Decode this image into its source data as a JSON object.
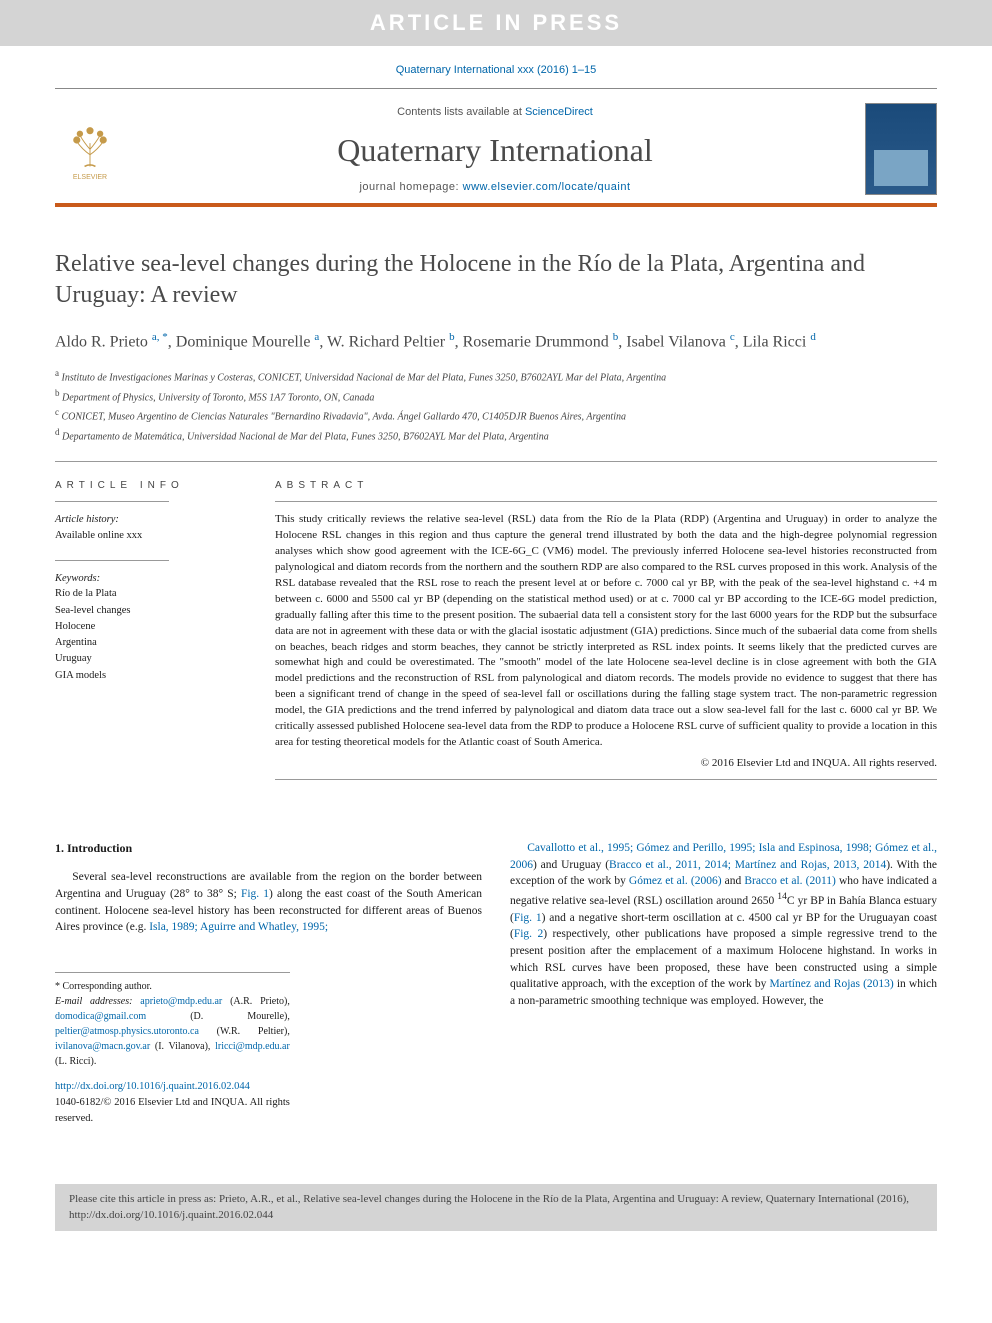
{
  "banner": {
    "text": "ARTICLE IN PRESS"
  },
  "journal_ref": "Quaternary International xxx (2016) 1–15",
  "masthead": {
    "contents_prefix": "Contents lists available at ",
    "contents_link": "ScienceDirect",
    "journal_title": "Quaternary International",
    "homepage_prefix": "journal homepage: ",
    "homepage_link": "www.elsevier.com/locate/quaint",
    "publisher": "ELSEVIER",
    "accent_color": "#c95a1a",
    "link_color": "#0066aa"
  },
  "article": {
    "title": "Relative sea-level changes during the Holocene in the Río de la Plata, Argentina and Uruguay: A review",
    "authors_html": "Aldo R. Prieto <sup>a, *</sup>, Dominique Mourelle <sup>a</sup>, W. Richard Peltier <sup>b</sup>, Rosemarie Drummond <sup>b</sup>, Isabel Vilanova <sup>c</sup>, Lila Ricci <sup>d</sup>",
    "affiliations": [
      {
        "sup": "a",
        "text": "Instituto de Investigaciones Marinas y Costeras, CONICET, Universidad Nacional de Mar del Plata, Funes 3250, B7602AYL Mar del Plata, Argentina"
      },
      {
        "sup": "b",
        "text": "Department of Physics, University of Toronto, M5S 1A7 Toronto, ON, Canada"
      },
      {
        "sup": "c",
        "text": "CONICET, Museo Argentino de Ciencias Naturales \"Bernardino Rivadavia\", Avda. Ángel Gallardo 470, C1405DJR Buenos Aires, Argentina"
      },
      {
        "sup": "d",
        "text": "Departamento de Matemática, Universidad Nacional de Mar del Plata, Funes 3250, B7602AYL Mar del Plata, Argentina"
      }
    ]
  },
  "info": {
    "header": "ARTICLE INFO",
    "history_label": "Article history:",
    "history_value": "Available online xxx",
    "keywords_label": "Keywords:",
    "keywords": [
      "Río de la Plata",
      "Sea-level changes",
      "Holocene",
      "Argentina",
      "Uruguay",
      "GIA models"
    ]
  },
  "abstract": {
    "header": "ABSTRACT",
    "text": "This study critically reviews the relative sea-level (RSL) data from the Río de la Plata (RDP) (Argentina and Uruguay) in order to analyze the Holocene RSL changes in this region and thus capture the general trend illustrated by both the data and the high-degree polynomial regression analyses which show good agreement with the ICE-6G_C (VM6) model. The previously inferred Holocene sea-level histories reconstructed from palynological and diatom records from the northern and the southern RDP are also compared to the RSL curves proposed in this work. Analysis of the RSL database revealed that the RSL rose to reach the present level at or before c. 7000 cal yr BP, with the peak of the sea-level highstand c. +4 m between c. 6000 and 5500 cal yr BP (depending on the statistical method used) or at c. 7000 cal yr BP according to the ICE-6G model prediction, gradually falling after this time to the present position. The subaerial data tell a consistent story for the last 6000 years for the RDP but the subsurface data are not in agreement with these data or with the glacial isostatic adjustment (GIA) predictions. Since much of the subaerial data come from shells on beaches, beach ridges and storm beaches, they cannot be strictly interpreted as RSL index points. It seems likely that the predicted curves are somewhat high and could be overestimated. The \"smooth\" model of the late Holocene sea-level decline is in close agreement with both the GIA model predictions and the reconstruction of RSL from palynological and diatom records. The models provide no evidence to suggest that there has been a significant trend of change in the speed of sea-level fall or oscillations during the falling stage system tract. The non-parametric regression model, the GIA predictions and the trend inferred by palynological and diatom data trace out a slow sea-level fall for the last c. 6000 cal yr BP. We critically assessed published Holocene sea-level data from the RDP to produce a Holocene RSL curve of sufficient quality to provide a location in this area for testing theoretical models for the Atlantic coast of South America.",
    "copyright": "© 2016 Elsevier Ltd and INQUA. All rights reserved."
  },
  "body": {
    "section_number": "1.",
    "section_title": "Introduction",
    "col1_para": "Several sea-level reconstructions are available from the region on the border between Argentina and Uruguay (28° to 38° S; <a>Fig. 1</a>) along the east coast of the South American continent. Holocene sea-level history has been reconstructed for different areas of Buenos Aires province (e.g. <a>Isla, 1989; Aguirre and Whatley, 1995;</a>",
    "col2_para": "<a>Cavallotto et al., 1995; Gómez and Perillo, 1995; Isla and Espinosa, 1998; Gómez et al., 2006</a>) and Uruguay (<a>Bracco et al., 2011, 2014; Martínez and Rojas, 2013, 2014</a>). With the exception of the work by <a>Gómez et al. (2006)</a> and <a>Bracco et al. (2011)</a> who have indicated a negative relative sea-level (RSL) oscillation around 2650 <sup>14</sup>C yr BP in Bahía Blanca estuary (<a>Fig. 1</a>) and a negative short-term oscillation at c. 4500 cal yr BP for the Uruguayan coast (<a>Fig. 2</a>) respectively, other publications have proposed a simple regressive trend to the present position after the emplacement of a maximum Holocene highstand. In works in which RSL curves have been proposed, these have been constructed using a simple qualitative approach, with the exception of the work by <a>Martínez and Rojas (2013)</a> in which a non-parametric smoothing technique was employed. However, the"
  },
  "footnotes": {
    "corresponding": "* Corresponding author.",
    "emails_label": "E-mail addresses:",
    "emails": [
      {
        "addr": "aprieto@mdp.edu.ar",
        "who": "(A.R. Prieto)"
      },
      {
        "addr": "domodica@gmail.com",
        "who": "(D. Mourelle)"
      },
      {
        "addr": "peltier@atmosp.physics.utoronto.ca",
        "who": "(W.R. Peltier)"
      },
      {
        "addr": "ivilanova@macn.gov.ar",
        "who": "(I. Vilanova)"
      },
      {
        "addr": "lricci@mdp.edu.ar",
        "who": "(L. Ricci)."
      }
    ],
    "doi": "http://dx.doi.org/10.1016/j.quaint.2016.02.044",
    "issn_line": "1040-6182/© 2016 Elsevier Ltd and INQUA. All rights reserved."
  },
  "cite_box": "Please cite this article in press as: Prieto, A.R., et al., Relative sea-level changes during the Holocene in the Río de la Plata, Argentina and Uruguay: A review, Quaternary International (2016), http://dx.doi.org/10.1016/j.quaint.2016.02.044"
}
